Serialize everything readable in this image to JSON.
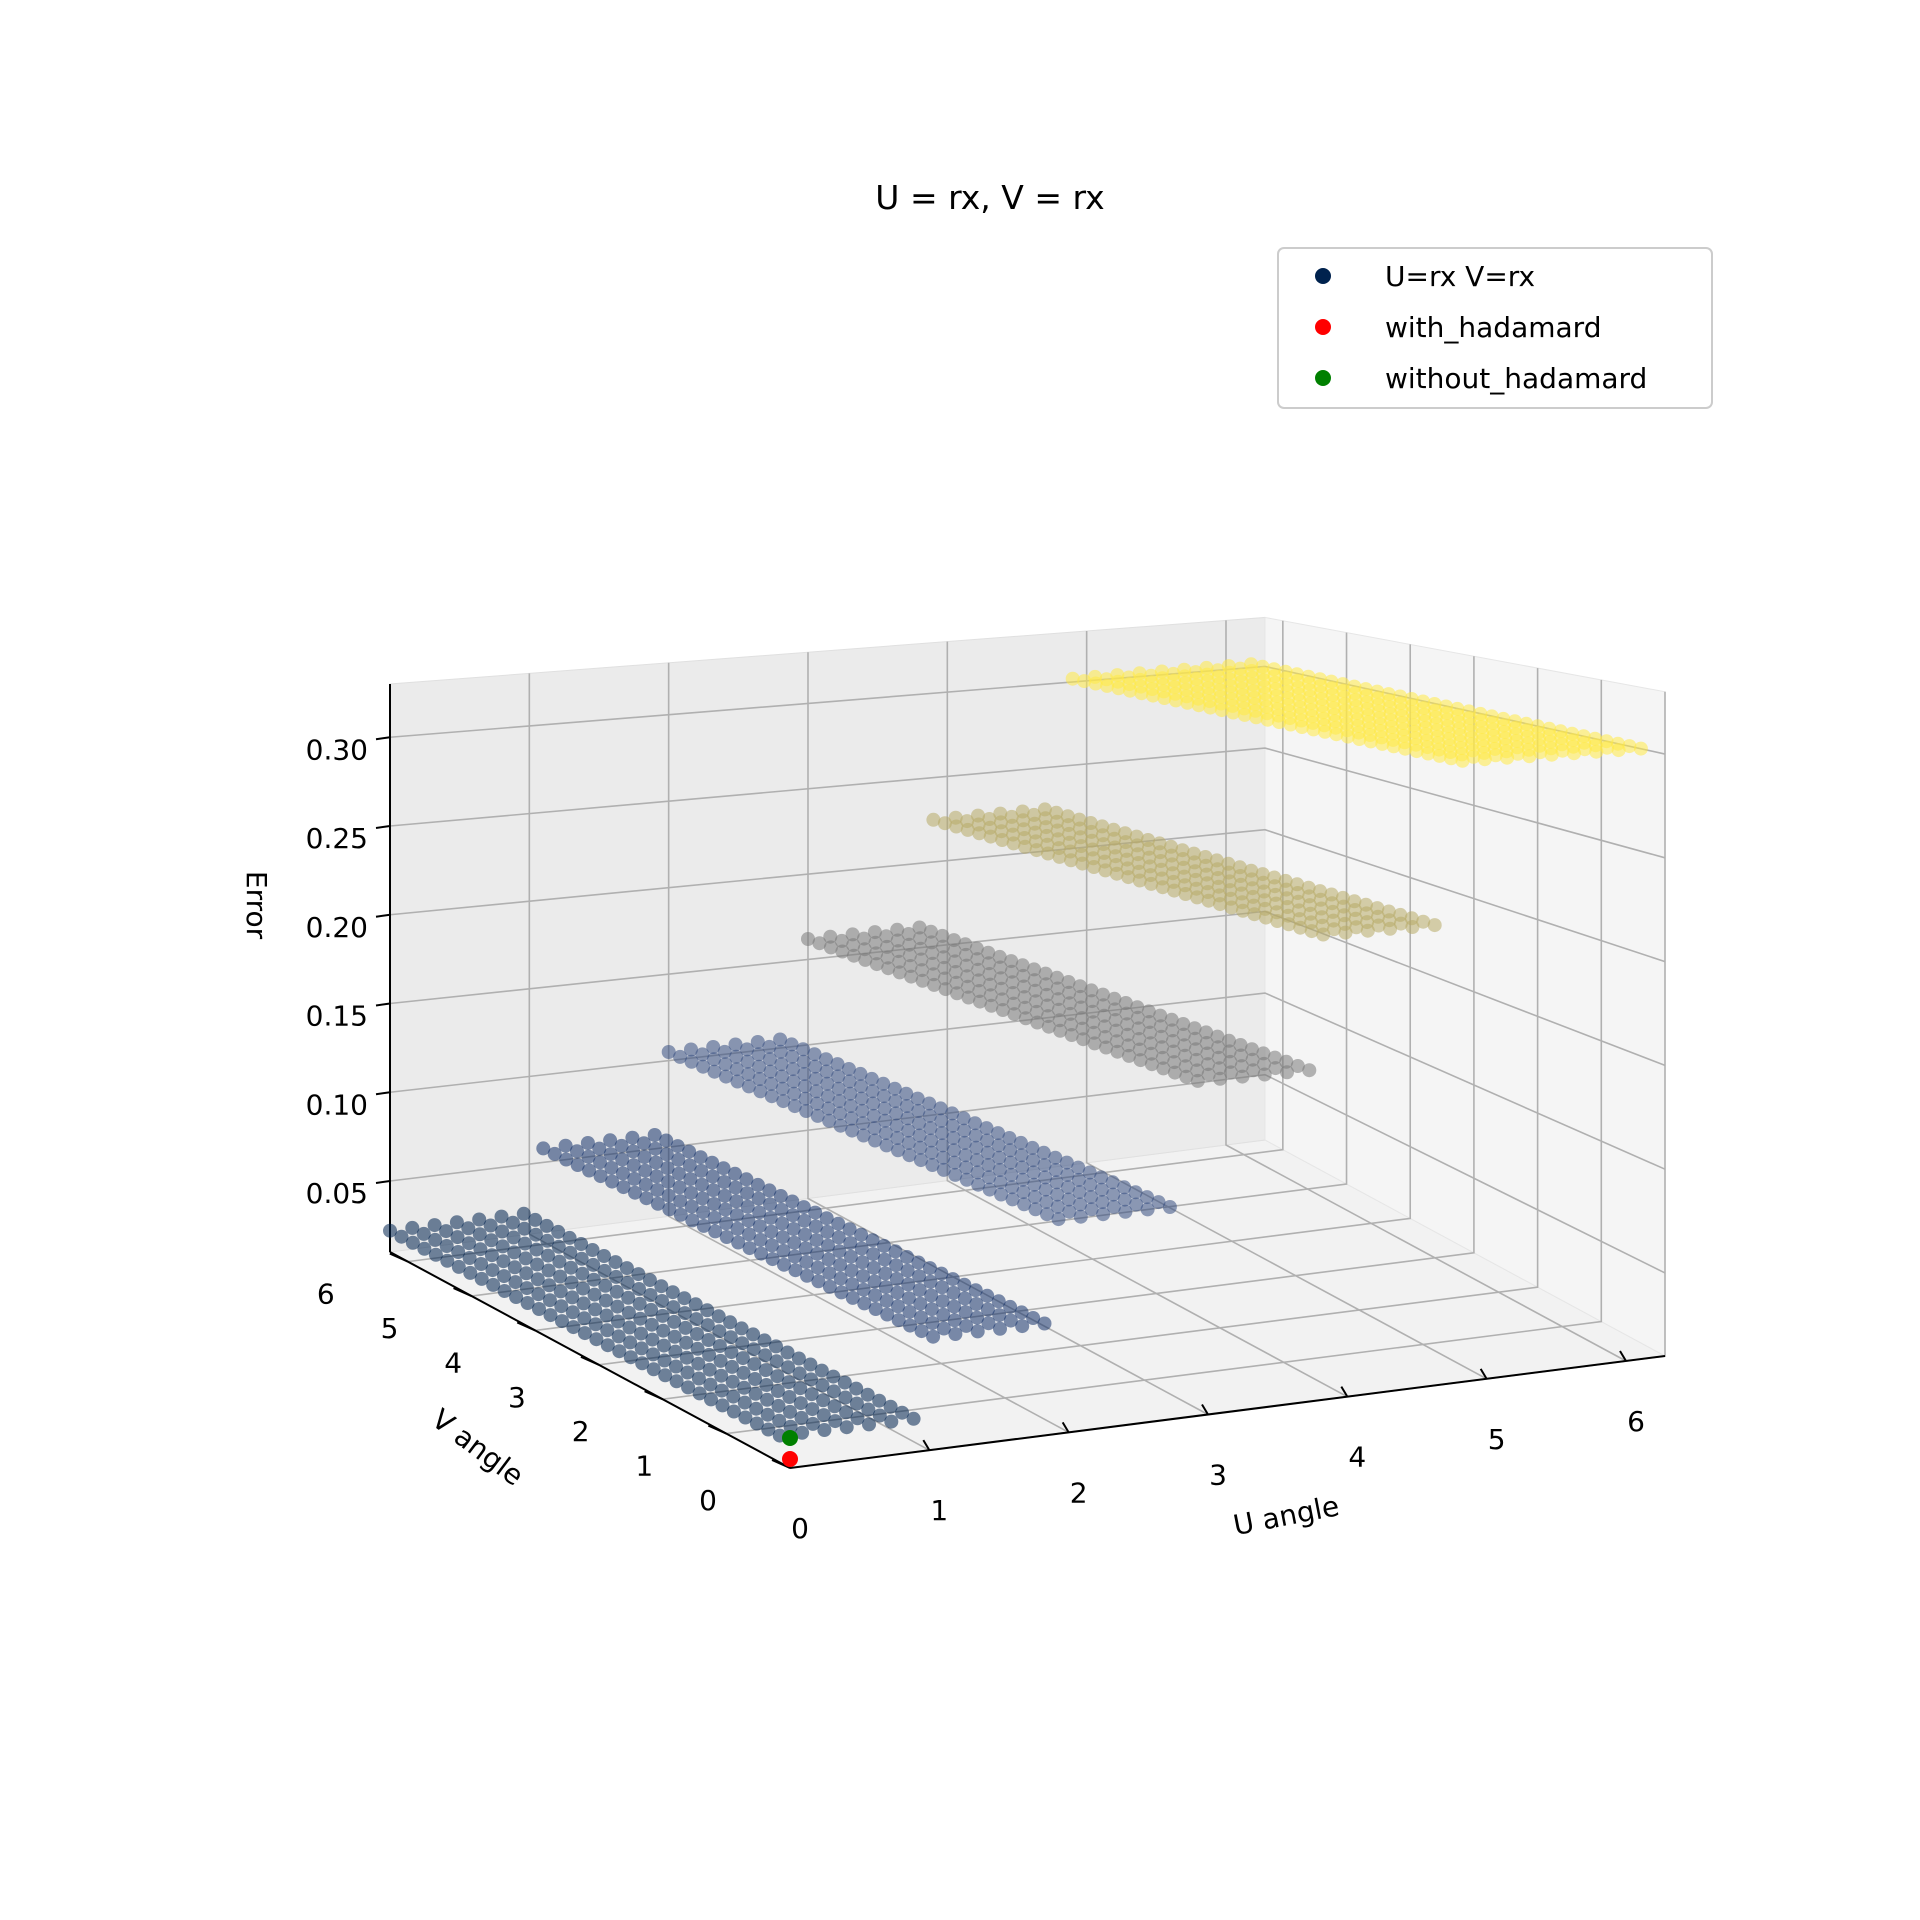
{
  "chart_data": {
    "type": "scatter",
    "projection": "3d",
    "title": "U = rx, V = rx",
    "xlabel": "U angle",
    "ylabel": "V angle",
    "zlabel": "Error",
    "xlim": [
      0,
      6.28
    ],
    "ylim": [
      0,
      6.28
    ],
    "zlim": [
      0.01,
      0.33
    ],
    "xticks": [
      "0",
      "1",
      "2",
      "3",
      "4",
      "5",
      "6"
    ],
    "yticks": [
      "0",
      "1",
      "2",
      "3",
      "4",
      "5",
      "6"
    ],
    "zticks": [
      "0.05",
      "0.10",
      "0.15",
      "0.20",
      "0.25",
      "0.30"
    ],
    "grid": true,
    "legend_position": "top-right",
    "colormap": "cividis",
    "series": [
      {
        "name": "U=rx V=rx",
        "color": "#00224e",
        "description": "error surface sampled over U angle x V angle; error steps up as U angle increases",
        "bands": [
          {
            "u_range": [
              0.0,
              1.0
            ],
            "error": 0.022
          },
          {
            "u_range": [
              1.1,
              1.9
            ],
            "error": 0.058
          },
          {
            "u_range": [
              2.0,
              2.9
            ],
            "error": 0.105
          },
          {
            "u_range": [
              3.0,
              3.8
            ],
            "error": 0.162
          },
          {
            "u_range": [
              3.9,
              4.8
            ],
            "error": 0.225
          },
          {
            "u_range": [
              4.9,
              6.28
            ],
            "error": 0.302
          }
        ]
      },
      {
        "name": "with_hadamard",
        "color": "#ff0000",
        "points": [
          {
            "u": 0,
            "v": 0,
            "error": 0.014
          }
        ]
      },
      {
        "name": "without_hadamard",
        "color": "#008000",
        "points": [
          {
            "u": 0,
            "v": 0,
            "error": 0.018
          }
        ]
      }
    ]
  }
}
